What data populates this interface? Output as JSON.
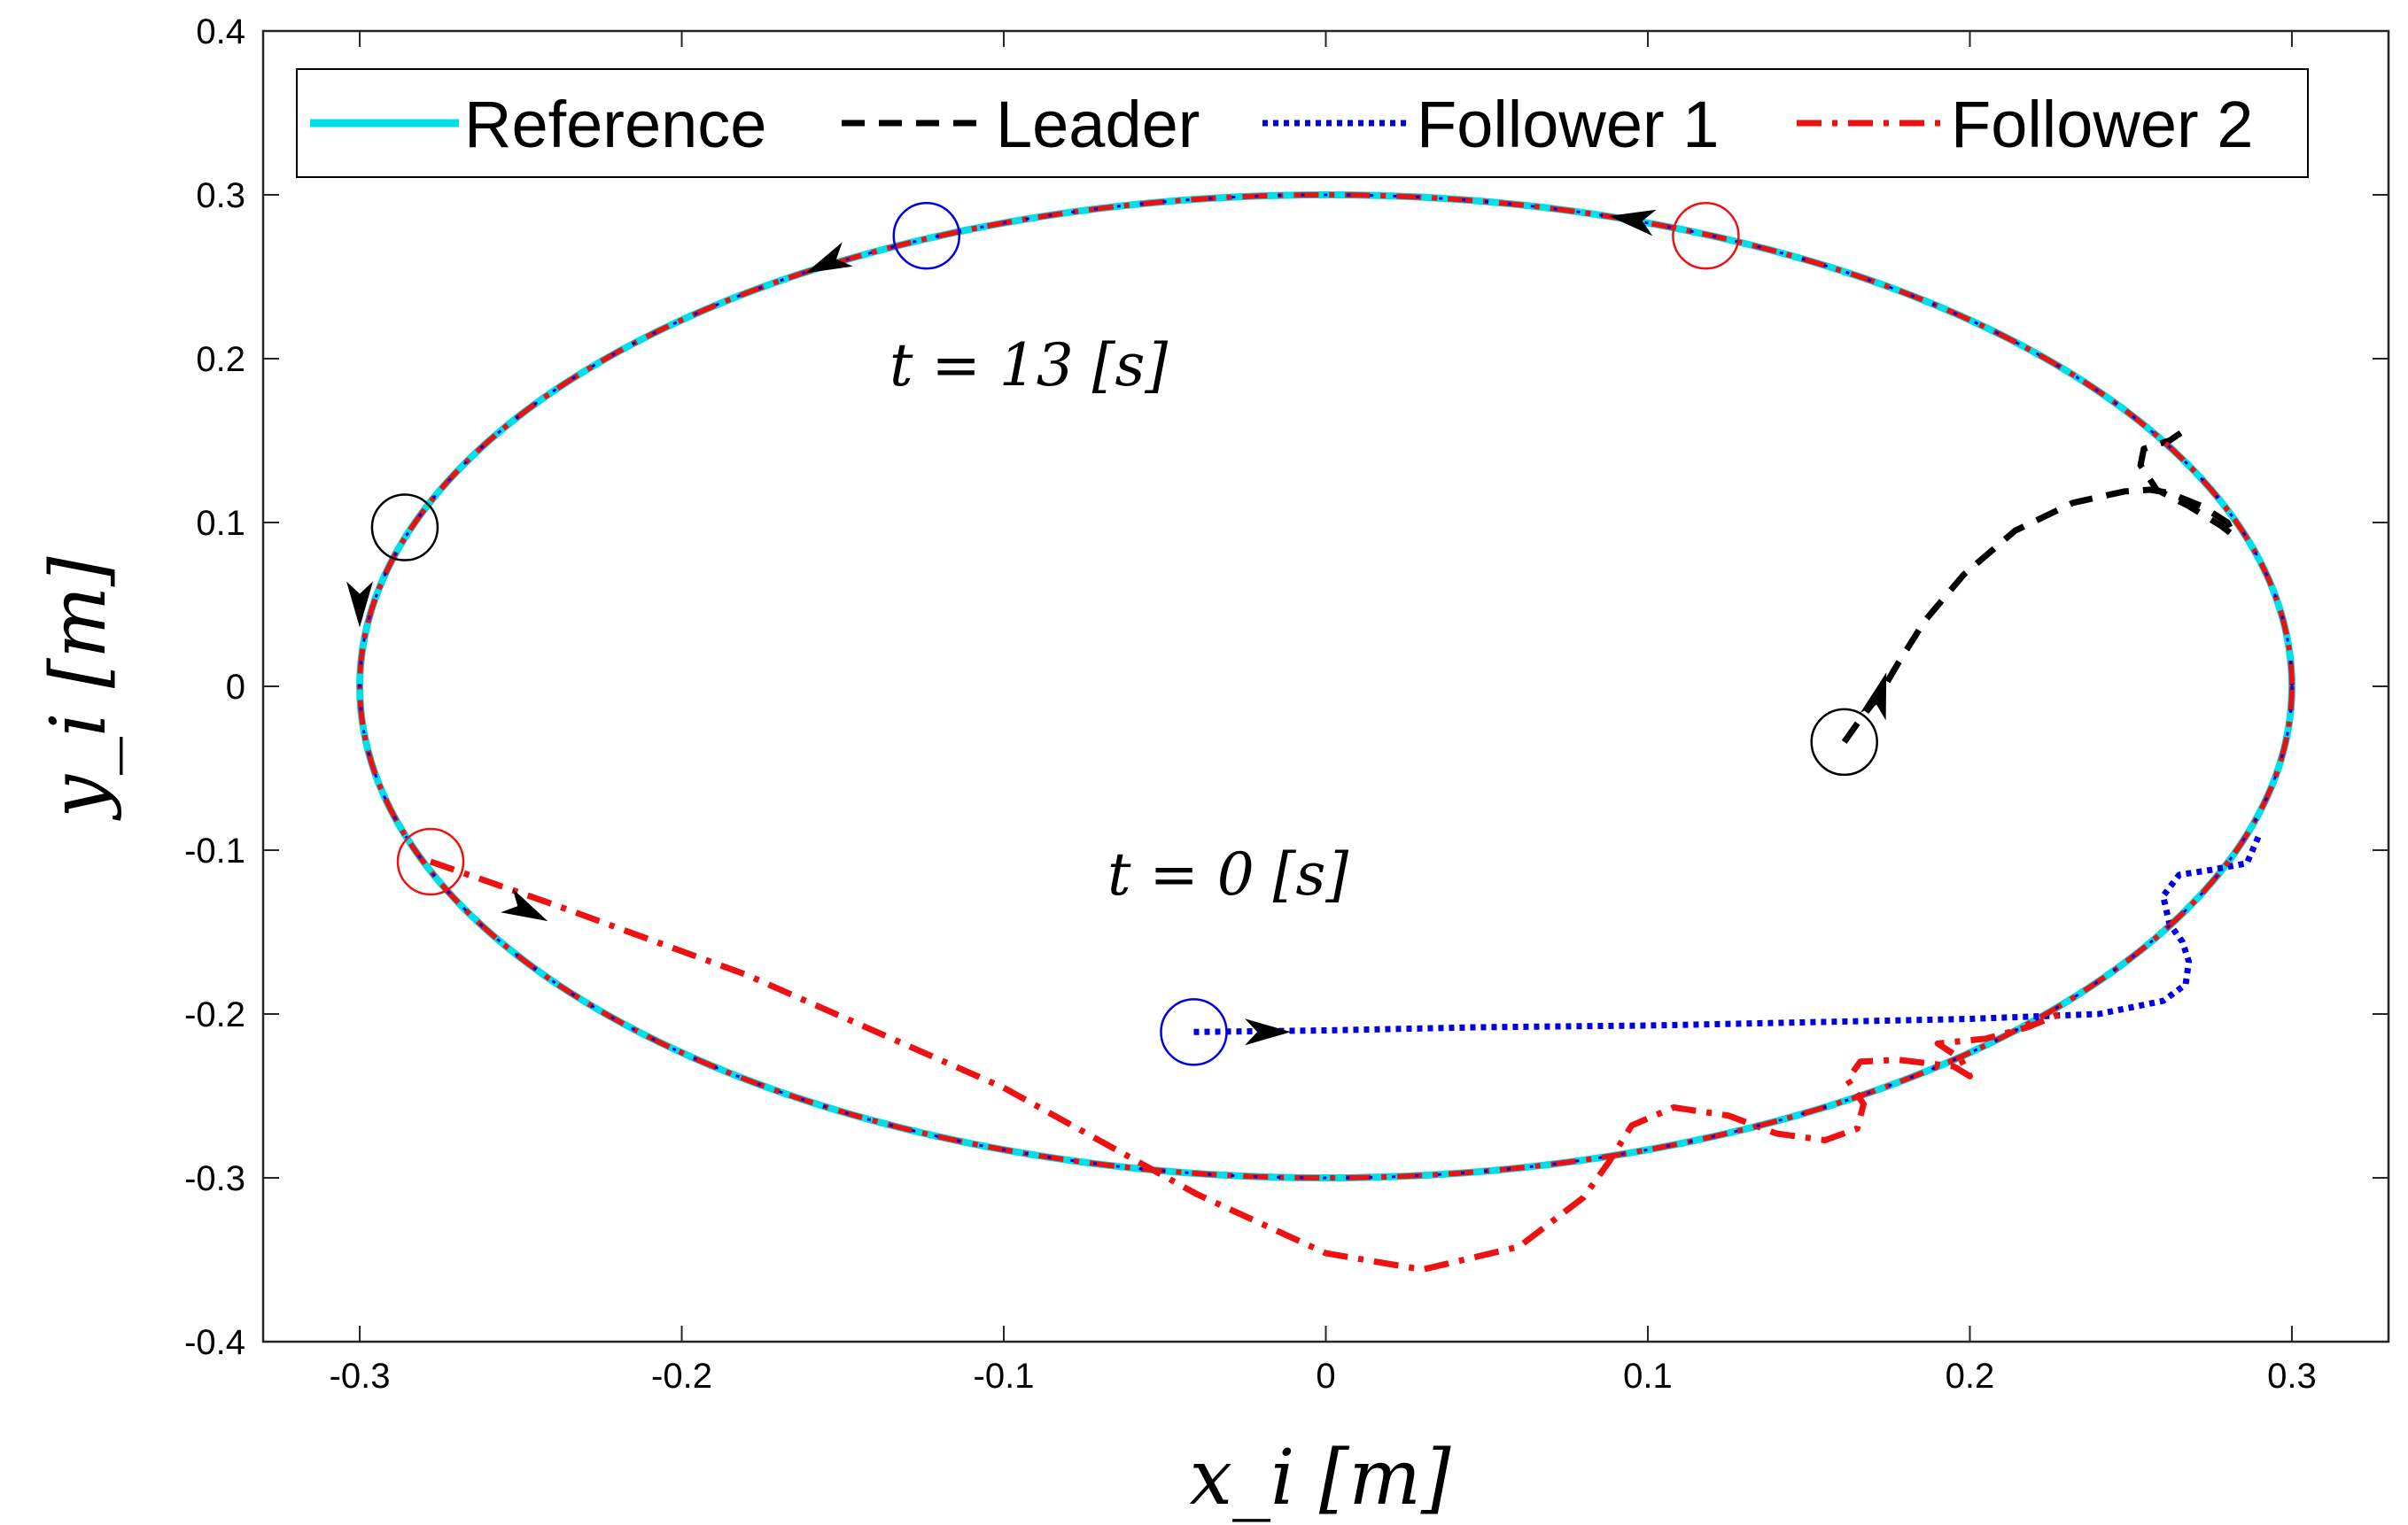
{
  "chart_data": {
    "type": "line",
    "title": "",
    "xlabel": "x_i [m]",
    "ylabel": "y_i [m]",
    "xlim": [
      -0.33,
      0.33
    ],
    "ylim": [
      -0.4,
      0.4
    ],
    "xticks": [
      -0.3,
      -0.2,
      -0.1,
      0,
      0.1,
      0.2,
      0.3
    ],
    "yticks": [
      -0.4,
      -0.3,
      -0.2,
      -0.1,
      0,
      0.1,
      0.2,
      0.3,
      0.4
    ],
    "xtick_labels": [
      "-0.3",
      "-0.2",
      "-0.1",
      "0",
      "0.1",
      "0.2",
      "0.3"
    ],
    "ytick_labels": [
      "-0.4",
      "-0.3",
      "-0.2",
      "-0.1",
      "0",
      "0.1",
      "0.2",
      "0.3",
      "0.4"
    ],
    "grid": false,
    "legend_position": "top",
    "annotations": [
      {
        "text": "t = 13 [s]",
        "x": -0.135,
        "y": 0.195
      },
      {
        "text": "t = 0 [s]",
        "x": -0.068,
        "y": -0.125
      }
    ],
    "series": [
      {
        "name": "Reference",
        "color": "#00e0e8",
        "style": "solid",
        "ellipse": {
          "cx": 0,
          "cy": 0,
          "rx": 0.3,
          "ry": 0.3
        }
      },
      {
        "name": "Leader",
        "color": "#000000",
        "style": "dashed",
        "x": [
          0.161,
          0.166,
          0.172,
          0.178,
          0.186,
          0.198,
          0.214,
          0.232,
          0.248,
          0.256,
          0.262,
          0.272,
          0.28,
          0.282,
          0.278,
          0.268,
          0.258,
          0.253,
          0.254,
          0.262,
          0.268
        ],
        "y": [
          -0.034,
          -0.02,
          -0.005,
          0.015,
          0.04,
          0.068,
          0.095,
          0.112,
          0.119,
          0.12,
          0.118,
          0.11,
          0.1,
          0.092,
          0.098,
          0.11,
          0.12,
          0.135,
          0.145,
          0.15,
          0.158
        ]
      },
      {
        "name": "Follower 1",
        "color": "#0000e6",
        "style": "dotted",
        "x": [
          -0.041,
          0.0,
          0.05,
          0.1,
          0.15,
          0.2,
          0.24,
          0.26,
          0.267,
          0.268,
          0.266,
          0.262,
          0.26,
          0.265,
          0.275,
          0.286,
          0.29
        ],
        "y": [
          -0.211,
          -0.21,
          -0.208,
          -0.207,
          -0.205,
          -0.203,
          -0.2,
          -0.192,
          -0.182,
          -0.168,
          -0.156,
          -0.145,
          -0.128,
          -0.115,
          -0.112,
          -0.108,
          -0.09
        ]
      },
      {
        "name": "Follower 2",
        "color": "#ee1111",
        "style": "dashdot",
        "x": [
          -0.278,
          -0.24,
          -0.18,
          -0.1,
          -0.04,
          0.0,
          0.03,
          0.06,
          0.08,
          0.088,
          0.095,
          0.108,
          0.125,
          0.14,
          0.155,
          0.165,
          0.167,
          0.162,
          0.166,
          0.178,
          0.195,
          0.2,
          0.197,
          0.19,
          0.205,
          0.218,
          0.228
        ],
        "y": [
          -0.107,
          -0.133,
          -0.176,
          -0.245,
          -0.31,
          -0.346,
          -0.356,
          -0.342,
          -0.312,
          -0.29,
          -0.268,
          -0.257,
          -0.262,
          -0.273,
          -0.277,
          -0.27,
          -0.255,
          -0.24,
          -0.229,
          -0.228,
          -0.232,
          -0.238,
          -0.227,
          -0.218,
          -0.215,
          -0.208,
          -0.2
        ]
      }
    ],
    "start_markers": [
      {
        "agent": "Leader",
        "x": 0.161,
        "y": -0.034,
        "color": "#000000"
      },
      {
        "agent": "Follower 1",
        "x": -0.041,
        "y": -0.211,
        "color": "#0000e6"
      },
      {
        "agent": "Follower 2",
        "x": -0.278,
        "y": -0.107,
        "color": "#ee1111"
      }
    ],
    "end_markers": [
      {
        "agent": "Leader",
        "x": -0.286,
        "y": 0.097,
        "color": "#000000"
      },
      {
        "agent": "Follower 1",
        "x": -0.124,
        "y": 0.275,
        "color": "#0000e6"
      },
      {
        "agent": "Follower 2",
        "x": 0.118,
        "y": 0.275,
        "color": "#ee1111"
      }
    ],
    "arrows": [
      {
        "x": 0.172,
        "y": -0.005,
        "dx": 0.3,
        "dy": 1
      },
      {
        "x": -0.018,
        "y": -0.211,
        "dx": 1,
        "dy": 0
      },
      {
        "x": -0.248,
        "y": -0.137,
        "dx": 1,
        "dy": -0.5
      },
      {
        "x": -0.3,
        "y": 0.05,
        "dx": 0,
        "dy": -1
      },
      {
        "x": -0.155,
        "y": 0.258,
        "dx": -1,
        "dy": -0.45
      },
      {
        "x": 0.095,
        "y": 0.285,
        "dx": -1,
        "dy": 0.15
      }
    ]
  }
}
